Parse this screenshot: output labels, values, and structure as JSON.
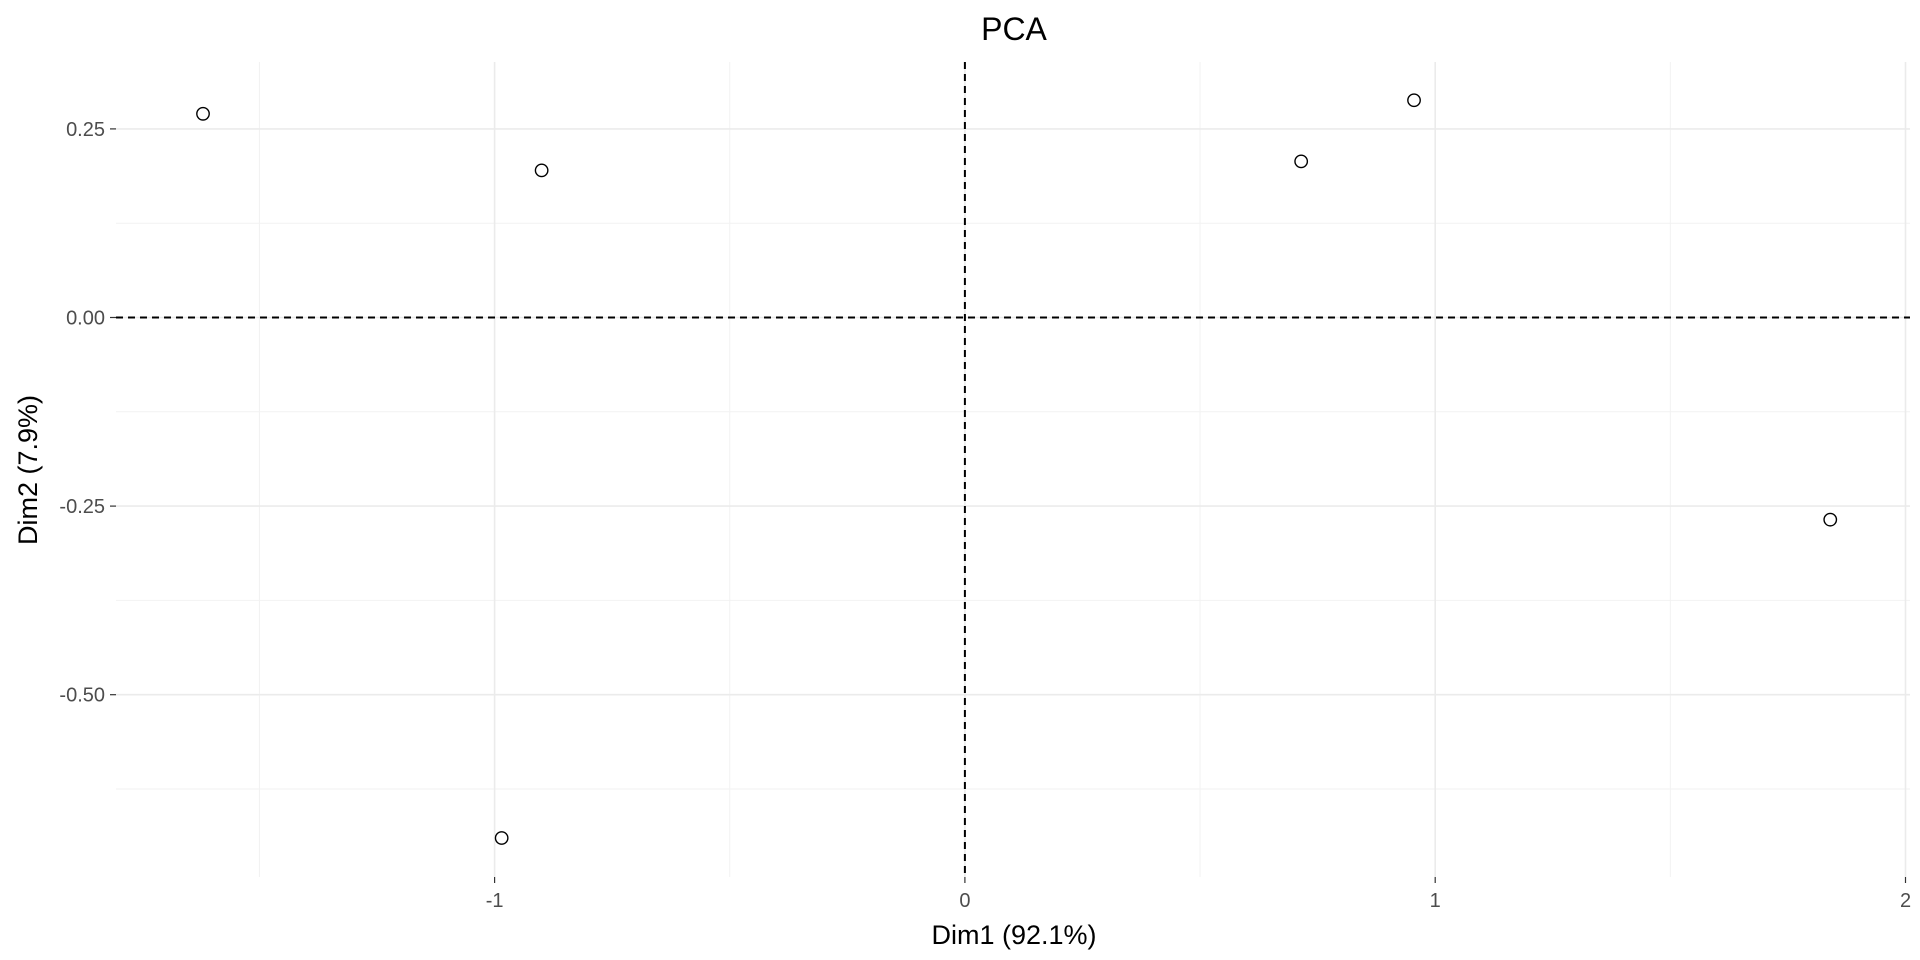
{
  "chart_data": {
    "type": "scatter",
    "title": "PCA",
    "xlabel": "Dim1 (92.1%)",
    "ylabel": "Dim2 (7.9%)",
    "xlim": [
      -2.0,
      2.0
    ],
    "ylim": [
      -0.7,
      0.35
    ],
    "x_ticks": [
      -1,
      0,
      1,
      2
    ],
    "x_tick_labels": [
      "-1",
      "0",
      "1",
      "2"
    ],
    "x_minor_ticks": [
      -1.5,
      -0.5,
      0.5,
      1.5
    ],
    "y_ticks": [
      0.25,
      0.0,
      -0.25,
      -0.5
    ],
    "y_tick_labels": [
      "0.25",
      "0.00",
      "-0.25",
      "-0.50"
    ],
    "y_minor_ticks": [
      0.125,
      -0.125,
      -0.375,
      -0.625
    ],
    "grid": true,
    "reference_lines": {
      "x": 0,
      "y": 0,
      "style": "dashed"
    },
    "marker": "open-circle",
    "points": [
      {
        "x": -1.62,
        "y": 0.27
      },
      {
        "x": -0.9,
        "y": 0.195
      },
      {
        "x": -0.985,
        "y": -0.69
      },
      {
        "x": 0.715,
        "y": 0.207
      },
      {
        "x": 0.955,
        "y": 0.288
      },
      {
        "x": 1.84,
        "y": -0.268
      }
    ]
  },
  "colors": {
    "background": "#ffffff",
    "grid_major": "#ebebeb",
    "grid_minor": "#f2f2f2",
    "tick_text": "#4d4d4d",
    "text": "#000000",
    "point_fill": "#ffffff",
    "point_stroke": "#000000"
  }
}
